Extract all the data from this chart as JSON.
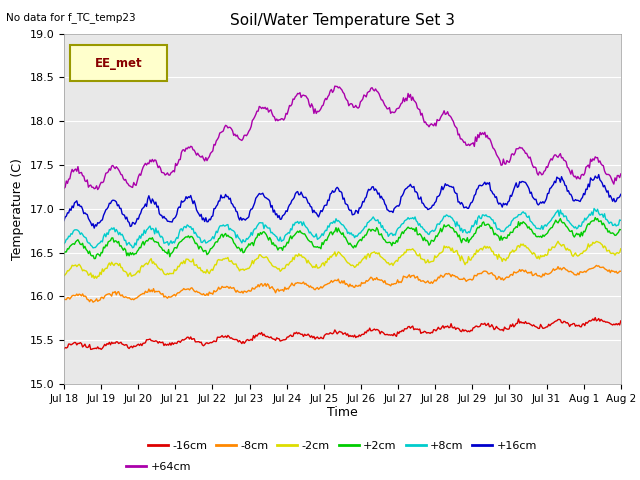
{
  "title": "Soil/Water Temperature Set 3",
  "xlabel": "Time",
  "ylabel": "Temperature (C)",
  "no_data_label": "No data for f_TC_temp23",
  "legend_label": "EE_met",
  "ylim": [
    15.0,
    19.0
  ],
  "yticks": [
    15.0,
    15.5,
    16.0,
    16.5,
    17.0,
    17.5,
    18.0,
    18.5,
    19.0
  ],
  "x_tick_labels": [
    "Jul 18",
    "Jul 19",
    "Jul 20",
    "Jul 21",
    "Jul 22",
    "Jul 23",
    "Jul 24",
    "Jul 25",
    "Jul 26",
    "Jul 27",
    "Jul 28",
    "Jul 29",
    "Jul 30",
    "Jul 31",
    "Aug 1",
    "Aug 2"
  ],
  "n_points": 480,
  "series": [
    {
      "label": "-16cm",
      "color": "#dd0000",
      "base": 15.42,
      "amp": 0.035,
      "trend": 0.3,
      "noise": 0.012,
      "period": 1.0
    },
    {
      "label": "-8cm",
      "color": "#ff8800",
      "base": 15.97,
      "amp": 0.04,
      "trend": 0.35,
      "noise": 0.012,
      "period": 1.0
    },
    {
      "label": "-2cm",
      "color": "#dddd00",
      "base": 16.28,
      "amp": 0.075,
      "trend": 0.28,
      "noise": 0.015,
      "period": 1.0
    },
    {
      "label": "+2cm",
      "color": "#00cc00",
      "base": 16.53,
      "amp": 0.09,
      "trend": 0.27,
      "noise": 0.015,
      "period": 1.0
    },
    {
      "label": "+8cm",
      "color": "#00cccc",
      "base": 16.65,
      "amp": 0.095,
      "trend": 0.25,
      "noise": 0.016,
      "period": 1.0
    },
    {
      "label": "+16cm",
      "color": "#0000cc",
      "base": 16.92,
      "amp": 0.14,
      "trend": 0.32,
      "noise": 0.018,
      "period": 1.0
    },
    {
      "label": "+64cm",
      "color": "#aa00aa",
      "base": 17.42,
      "amp": 0.09,
      "trend": 0.1,
      "noise": 0.018,
      "period": 1.0
    }
  ],
  "bg_color": "#e8e8e8",
  "grid_color": "#ffffff",
  "fig_color": "#ffffff",
  "linewidth": 1.0
}
